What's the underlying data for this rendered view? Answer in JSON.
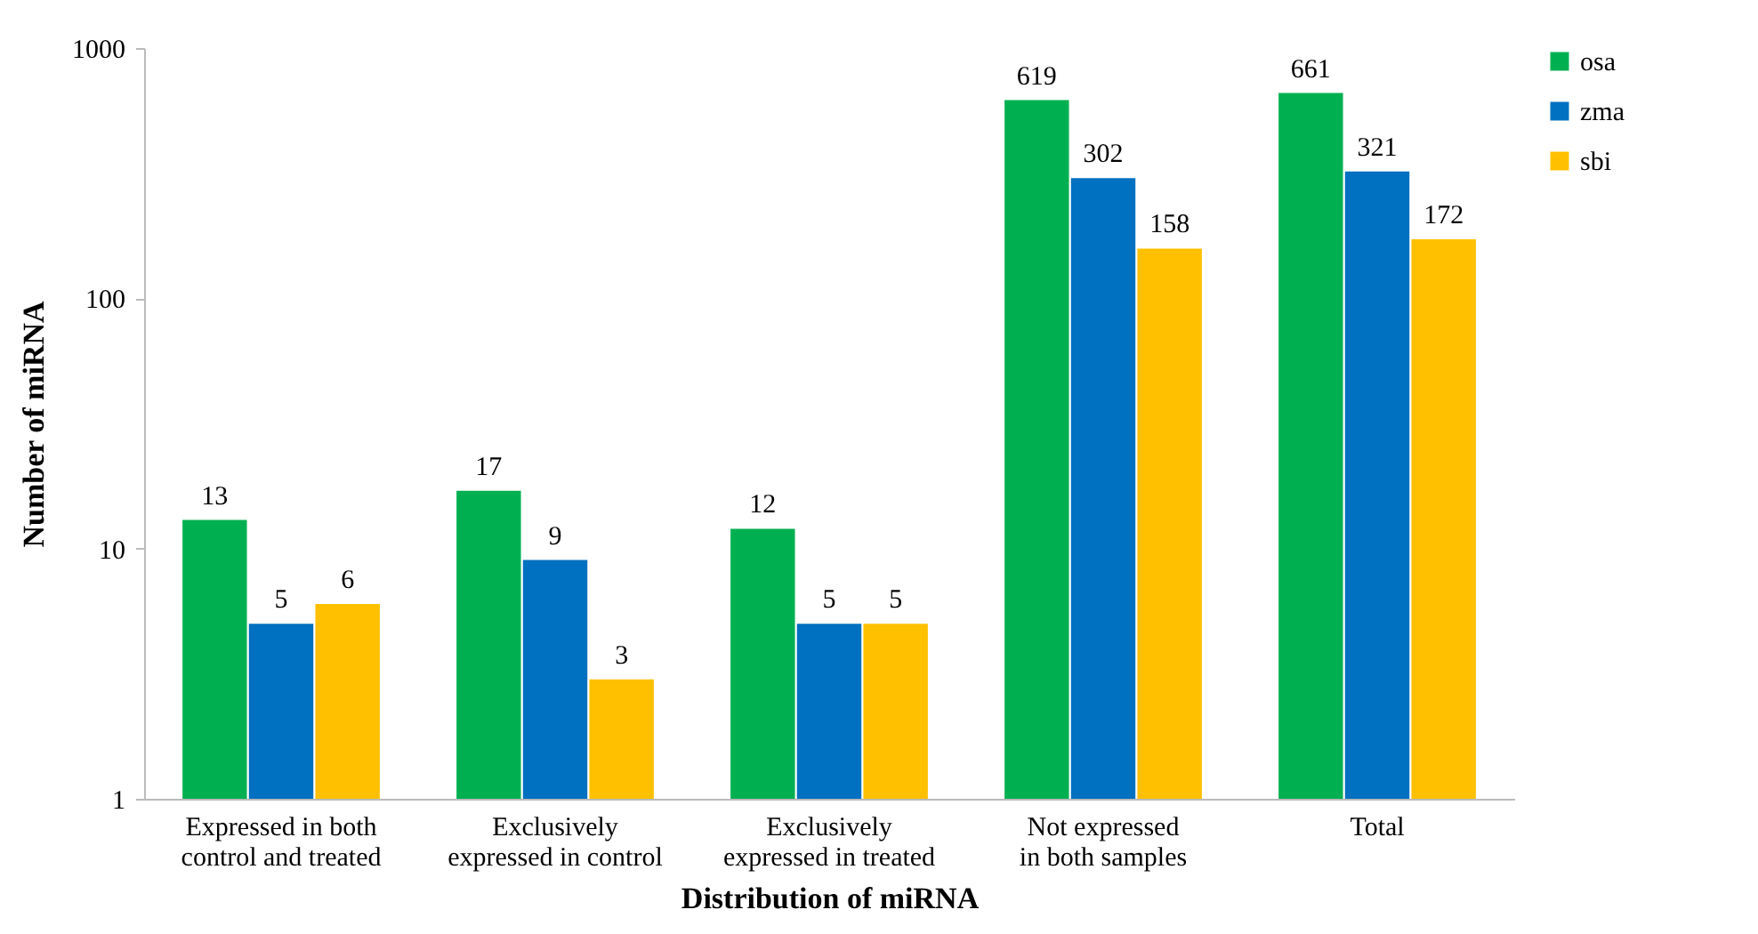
{
  "chart_data": {
    "type": "bar",
    "xlabel": "Distribution of miRNA",
    "ylabel": "Number of miRNA",
    "categories": [
      "Expressed in both control and treated",
      "Exclusively expressed in control",
      "Exclusively expressed in treated",
      "Not expressed in both samples",
      "Total"
    ],
    "series": [
      {
        "name": "osa",
        "color": "#00b050",
        "values": [
          13,
          17,
          12,
          619,
          661
        ]
      },
      {
        "name": "zma",
        "color": "#0070c0",
        "values": [
          5,
          9,
          5,
          302,
          321
        ]
      },
      {
        "name": "sbi",
        "color": "#ffc000",
        "values": [
          6,
          3,
          5,
          158,
          172
        ]
      }
    ],
    "log": true,
    "ylim": [
      1,
      1000
    ],
    "yticks": [
      1,
      10,
      100,
      1000
    ],
    "grid": false,
    "legend": "right",
    "data_labels": true
  }
}
